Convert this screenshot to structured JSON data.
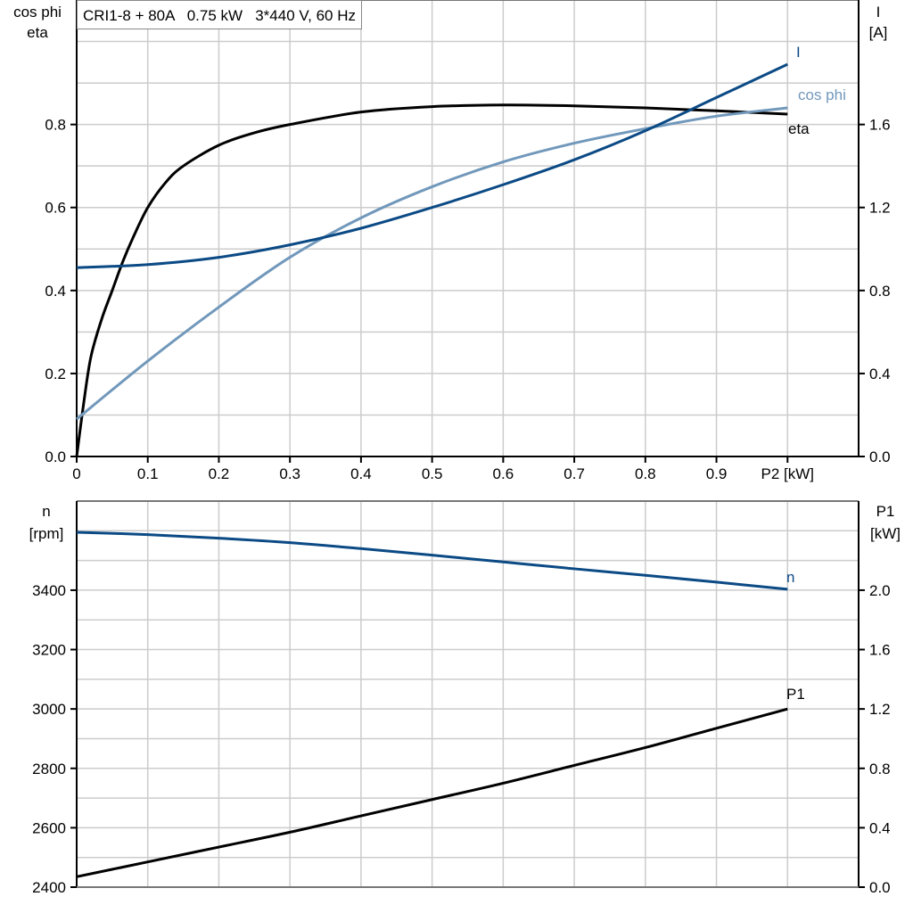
{
  "title": "CRI1-8 + 80A   0.75 kW   3*440 V, 60 Hz",
  "chart_data": [
    {
      "type": "line",
      "xlabel": "P2 [kW]",
      "xlim": [
        0,
        1.1
      ],
      "xticks": [
        "0",
        "0.1",
        "0.2",
        "0.3",
        "0.4",
        "0.5",
        "0.6",
        "0.7",
        "0.8",
        "0.9"
      ],
      "ylabel_left": [
        "cos phi",
        "eta"
      ],
      "ylim_left": [
        0,
        1.1
      ],
      "yticks_left": [
        "0.0",
        "0.2",
        "0.4",
        "0.6",
        "0.8"
      ],
      "ylabel_right": [
        "I",
        "[A]"
      ],
      "ylim_right": [
        0,
        2.2
      ],
      "yticks_right": [
        "0.0",
        "0.4",
        "0.8",
        "1.2",
        "1.6"
      ],
      "grid": true,
      "series": [
        {
          "name": "eta",
          "axis": "left",
          "color": "#000000",
          "x": [
            0,
            0.01,
            0.02,
            0.035,
            0.05,
            0.065,
            0.08,
            0.1,
            0.125,
            0.15,
            0.2,
            0.25,
            0.3,
            0.4,
            0.5,
            0.6,
            0.7,
            0.8,
            0.9,
            1.0
          ],
          "y": [
            0,
            0.13,
            0.24,
            0.33,
            0.4,
            0.47,
            0.53,
            0.6,
            0.66,
            0.7,
            0.75,
            0.78,
            0.8,
            0.83,
            0.843,
            0.847,
            0.845,
            0.84,
            0.833,
            0.825
          ]
        },
        {
          "name": "cos phi",
          "axis": "left",
          "color": "#7198bb",
          "x": [
            0,
            0.1,
            0.2,
            0.3,
            0.4,
            0.5,
            0.6,
            0.7,
            0.8,
            0.9,
            1.0
          ],
          "y": [
            0.09,
            0.23,
            0.36,
            0.48,
            0.575,
            0.65,
            0.71,
            0.755,
            0.79,
            0.82,
            0.84
          ]
        },
        {
          "name": "I",
          "axis": "right",
          "color": "#0b4a85",
          "x": [
            0,
            0.1,
            0.2,
            0.3,
            0.4,
            0.5,
            0.6,
            0.7,
            0.8,
            0.9,
            1.0
          ],
          "y": [
            0.91,
            0.925,
            0.96,
            1.02,
            1.1,
            1.2,
            1.31,
            1.43,
            1.57,
            1.73,
            1.89
          ]
        }
      ]
    },
    {
      "type": "line",
      "xlim": [
        0,
        1.1
      ],
      "ylabel_left": [
        "n",
        "[rpm]"
      ],
      "ylim_left": [
        2400,
        3700
      ],
      "yticks_left": [
        "2400",
        "2600",
        "2800",
        "3000",
        "3200",
        "3400"
      ],
      "ylabel_right": [
        "P1",
        "[kW]"
      ],
      "ylim_right": [
        0,
        2.6
      ],
      "yticks_right": [
        "0.0",
        "0.4",
        "0.8",
        "1.2",
        "1.6",
        "2.0"
      ],
      "grid": true,
      "series": [
        {
          "name": "n",
          "axis": "left",
          "color": "#0b4a85",
          "x": [
            0,
            0.1,
            0.2,
            0.3,
            0.4,
            0.5,
            0.6,
            0.7,
            0.8,
            0.9,
            1.0
          ],
          "y": [
            3595,
            3587,
            3575,
            3560,
            3540,
            3518,
            3495,
            3472,
            3450,
            3427,
            3403
          ]
        },
        {
          "name": "P1",
          "axis": "right",
          "color": "#000000",
          "x": [
            0,
            0.1,
            0.2,
            0.3,
            0.4,
            0.5,
            0.6,
            0.7,
            0.8,
            0.9,
            1.0
          ],
          "y": [
            0.07,
            0.17,
            0.27,
            0.37,
            0.48,
            0.59,
            0.7,
            0.82,
            0.94,
            1.07,
            1.2
          ]
        }
      ]
    }
  ]
}
